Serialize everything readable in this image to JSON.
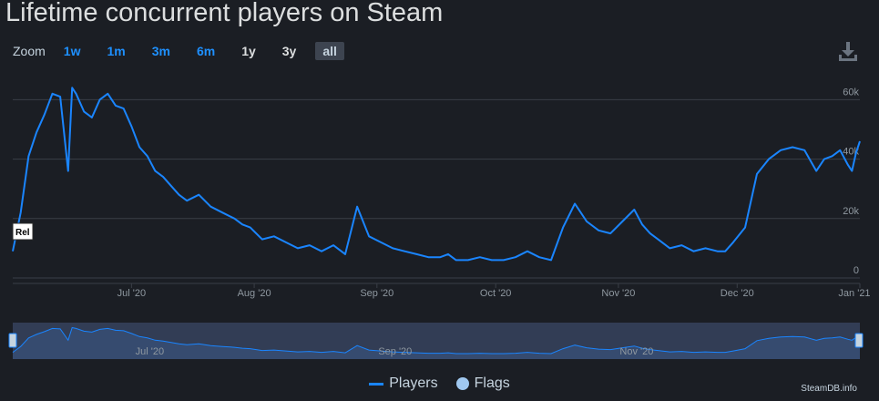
{
  "title": "Lifetime concurrent players on Steam",
  "zoom": {
    "label": "Zoom",
    "buttons": [
      "1w",
      "1m",
      "3m",
      "6m",
      "1y",
      "3y",
      "all"
    ],
    "active": "all"
  },
  "icons": {
    "download": "download-icon"
  },
  "colors": {
    "series": "#1a85ff",
    "flags": "#a0c8f0",
    "background": "#1b1e24",
    "grid": "#3a3f47",
    "navigator_mask": "#323d55"
  },
  "legend": {
    "players": "Players",
    "flags": "Flags"
  },
  "flag_marker": "Rel",
  "credit": "SteamDB.info",
  "navigator_labels": [
    "Jul '20",
    "Sep '20",
    "Nov '20"
  ],
  "chart_data": {
    "type": "line",
    "title": "Lifetime concurrent players on Steam",
    "x_ticks": [
      "Jul '20",
      "Aug '20",
      "Sep '20",
      "Oct '20",
      "Nov '20",
      "Dec '20",
      "Jan '21"
    ],
    "y_ticks": [
      "0",
      "20k",
      "40k",
      "60k"
    ],
    "ylim": [
      0,
      60000
    ],
    "xlim": [
      "2020-06-01",
      "2021-01-01"
    ],
    "grid": true,
    "legend": "bottom-center",
    "series": [
      {
        "name": "Players",
        "x": [
          "2020-06-01",
          "2020-06-03",
          "2020-06-05",
          "2020-06-07",
          "2020-06-09",
          "2020-06-11",
          "2020-06-13",
          "2020-06-15",
          "2020-06-16",
          "2020-06-17",
          "2020-06-19",
          "2020-06-21",
          "2020-06-23",
          "2020-06-25",
          "2020-06-27",
          "2020-06-29",
          "2020-07-01",
          "2020-07-03",
          "2020-07-05",
          "2020-07-07",
          "2020-07-09",
          "2020-07-11",
          "2020-07-13",
          "2020-07-15",
          "2020-07-18",
          "2020-07-21",
          "2020-07-24",
          "2020-07-27",
          "2020-07-29",
          "2020-07-31",
          "2020-08-03",
          "2020-08-06",
          "2020-08-09",
          "2020-08-12",
          "2020-08-15",
          "2020-08-18",
          "2020-08-21",
          "2020-08-24",
          "2020-08-27",
          "2020-08-30",
          "2020-09-02",
          "2020-09-05",
          "2020-09-08",
          "2020-09-11",
          "2020-09-14",
          "2020-09-17",
          "2020-09-19",
          "2020-09-21",
          "2020-09-24",
          "2020-09-27",
          "2020-09-30",
          "2020-10-03",
          "2020-10-06",
          "2020-10-09",
          "2020-10-12",
          "2020-10-15",
          "2020-10-18",
          "2020-10-21",
          "2020-10-24",
          "2020-10-27",
          "2020-10-30",
          "2020-11-02",
          "2020-11-05",
          "2020-11-07",
          "2020-11-09",
          "2020-11-11",
          "2020-11-14",
          "2020-11-17",
          "2020-11-20",
          "2020-11-23",
          "2020-11-26",
          "2020-11-28",
          "2020-11-30",
          "2020-12-03",
          "2020-12-06",
          "2020-12-09",
          "2020-12-12",
          "2020-12-15",
          "2020-12-18",
          "2020-12-21",
          "2020-12-23",
          "2020-12-25",
          "2020-12-27",
          "2020-12-29",
          "2020-12-30",
          "2020-12-31",
          "2021-01-01"
        ],
        "y": [
          9000,
          22000,
          41000,
          49000,
          55000,
          62000,
          61000,
          36000,
          64000,
          62000,
          56000,
          54000,
          60000,
          62000,
          58000,
          57000,
          51000,
          44000,
          41000,
          36000,
          34000,
          31000,
          28000,
          26000,
          28000,
          24000,
          22000,
          20000,
          18000,
          17000,
          13000,
          14000,
          12000,
          10000,
          11000,
          9000,
          11000,
          8000,
          24000,
          14000,
          12000,
          10000,
          9000,
          8000,
          7000,
          7000,
          8000,
          6000,
          6000,
          7000,
          6000,
          6000,
          7000,
          9000,
          7000,
          6000,
          17000,
          25000,
          19000,
          16000,
          15000,
          19000,
          23000,
          18000,
          15000,
          13000,
          10000,
          11000,
          9000,
          10000,
          9000,
          9000,
          12000,
          17000,
          35000,
          40000,
          43000,
          44000,
          43000,
          36000,
          40000,
          41000,
          43000,
          38000,
          36000,
          42000,
          46000
        ]
      }
    ]
  }
}
